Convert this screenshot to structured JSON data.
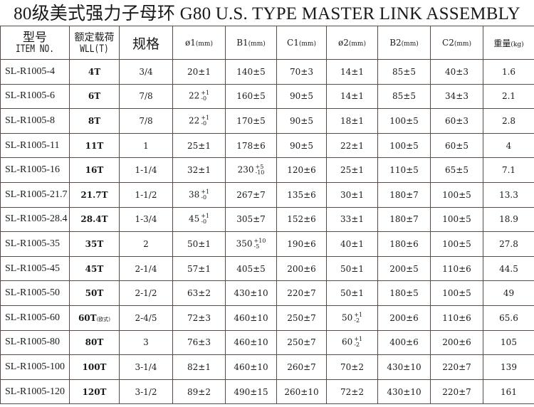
{
  "title": "80级美式强力子母环 G80 U.S. TYPE MASTER LINK ASSEMBLY",
  "headers": {
    "item_cn": "型号",
    "item_en": "ITEM NO.",
    "wll_cn": "额定载荷",
    "wll_en": "WLL(T)",
    "spec": "规格",
    "d1": "ø1",
    "b1": "B1",
    "c1": "C1",
    "d2": "ø2",
    "b2": "B2",
    "c2": "C2",
    "unit_mm": "(mm)",
    "weight": "重量",
    "unit_kg": "(kg)"
  },
  "rows": [
    {
      "item": "SL-R1005-4",
      "wll": "4T",
      "spec": "3/4",
      "d1": "20±1",
      "b1": "140±5",
      "c1": "70±3",
      "d2": "14±1",
      "b2": "85±5",
      "c2": "40±3",
      "kg": "1.6"
    },
    {
      "item": "SL-R1005-6",
      "wll": "6T",
      "spec": "7/8",
      "d1": {
        "v": "22",
        "up": "+1",
        "dn": "-0"
      },
      "b1": "160±5",
      "c1": "90±5",
      "d2": "14±1",
      "b2": "85±5",
      "c2": "34±3",
      "kg": "2.1"
    },
    {
      "item": "SL-R1005-8",
      "wll": "8T",
      "spec": "7/8",
      "d1": {
        "v": "22",
        "up": "+1",
        "dn": "-0"
      },
      "b1": "170±5",
      "c1": "90±5",
      "d2": "18±1",
      "b2": "100±5",
      "c2": "60±3",
      "kg": "2.8"
    },
    {
      "item": "SL-R1005-11",
      "wll": "11T",
      "spec": "1",
      "d1": "25±1",
      "b1": "178±6",
      "c1": "90±5",
      "d2": "22±1",
      "b2": "100±5",
      "c2": "60±5",
      "kg": "4"
    },
    {
      "item": "SL-R1005-16",
      "wll": "16T",
      "spec": "1-1/4",
      "d1": "32±1",
      "b1": {
        "v": "230",
        "up": "+5",
        "dn": "-10"
      },
      "c1": "120±6",
      "d2": "25±1",
      "b2": "110±5",
      "c2": "65±5",
      "kg": "7.1"
    },
    {
      "item": "SL-R1005-21.7",
      "wll": "21.7T",
      "spec": "1-1/2",
      "d1": {
        "v": "38",
        "up": "+1",
        "dn": "-0"
      },
      "b1": "267±7",
      "c1": "135±6",
      "d2": "30±1",
      "b2": "180±7",
      "c2": "100±5",
      "kg": "13.3"
    },
    {
      "item": "SL-R1005-28.4",
      "wll": "28.4T",
      "spec": "1-3/4",
      "d1": {
        "v": "45",
        "up": "+1",
        "dn": "-0"
      },
      "b1": "305±7",
      "c1": "152±6",
      "d2": "33±1",
      "b2": "180±7",
      "c2": "100±5",
      "kg": "18.9"
    },
    {
      "item": "SL-R1005-35",
      "wll": "35T",
      "spec": "2",
      "d1": "50±1",
      "b1": {
        "v": "350",
        "up": "+10",
        "dn": "-5"
      },
      "c1": "190±6",
      "d2": "40±1",
      "b2": "180±6",
      "c2": "100±5",
      "kg": "27.8"
    },
    {
      "item": "SL-R1005-45",
      "wll": "45T",
      "spec": "2-1/4",
      "d1": "57±1",
      "b1": "405±5",
      "c1": "200±6",
      "d2": "50±1",
      "b2": "200±5",
      "c2": "110±6",
      "kg": "44.5"
    },
    {
      "item": "SL-R1005-50",
      "wll": "50T",
      "spec": "2-1/2",
      "d1": "63±2",
      "b1": "430±10",
      "c1": "220±7",
      "d2": "50±1",
      "b2": "180±5",
      "c2": "100±5",
      "kg": "49"
    },
    {
      "item": "SL-R1005-60",
      "wll": "60T",
      "wll_suffix": "(欧式)",
      "spec": "2-4/5",
      "d1": "72±3",
      "b1": "460±10",
      "c1": "250±7",
      "d2": {
        "v": "50",
        "up": "+1",
        "dn": "-2"
      },
      "b2": "200±6",
      "c2": "110±6",
      "kg": "65.6"
    },
    {
      "item": "SL-R1005-80",
      "wll": "80T",
      "spec": "3",
      "d1": "76±3",
      "b1": "460±10",
      "c1": "250±7",
      "d2": {
        "v": "60",
        "up": "+1",
        "dn": "-2"
      },
      "b2": "400±6",
      "c2": "200±6",
      "kg": "105"
    },
    {
      "item": "SL-R1005-100",
      "wll": "100T",
      "spec": "3-1/4",
      "d1": "82±1",
      "b1": "460±10",
      "c1": "260±7",
      "d2": "70±2",
      "b2": "430±10",
      "c2": "220±7",
      "kg": "139"
    },
    {
      "item": "SL-R1005-120",
      "wll": "120T",
      "spec": "3-1/2",
      "d1": "89±2",
      "b1": "490±15",
      "c1": "260±10",
      "d2": "72±2",
      "b2": "430±10",
      "c2": "220±7",
      "kg": "161"
    }
  ]
}
